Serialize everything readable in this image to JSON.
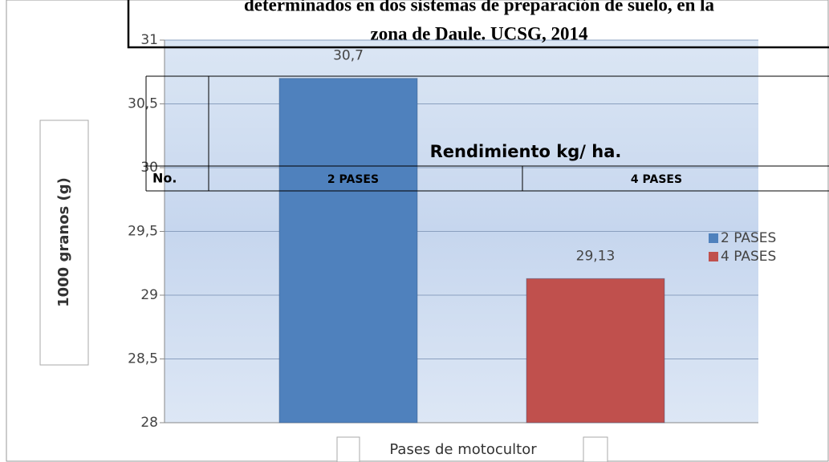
{
  "chart_data": {
    "type": "bar",
    "categories": [
      "2",
      "4"
    ],
    "series": [
      {
        "name": "2 PASES",
        "color": "#4f81bd",
        "values": [
          30.7,
          null
        ],
        "value_labels": [
          "30,7",
          null
        ]
      },
      {
        "name": "4 PASES",
        "color": "#c0504d",
        "values": [
          null,
          29.13
        ],
        "value_labels": [
          null,
          "29,13"
        ]
      }
    ],
    "ylabel": "1000 granos  (g)",
    "xlabel": "Pases de motocultor",
    "ylim": [
      28,
      31
    ],
    "yticks": [
      28,
      {
        "value": 28.5,
        "label": "28,5"
      },
      29,
      {
        "value": 29.5,
        "label": "29,5"
      },
      30,
      {
        "value": 30.5,
        "label": "30,5"
      },
      31
    ],
    "grid": true,
    "legend": "right"
  },
  "overlay": {
    "title_lines": [
      "determinados en dos sistemas de preparación de suelo, en la",
      "zona de Daule.  UCSG, 2014"
    ],
    "table": {
      "caption": "Rendimiento kg/ ha.",
      "header": [
        "No.",
        "2 PASES",
        "4 PASES"
      ]
    }
  }
}
